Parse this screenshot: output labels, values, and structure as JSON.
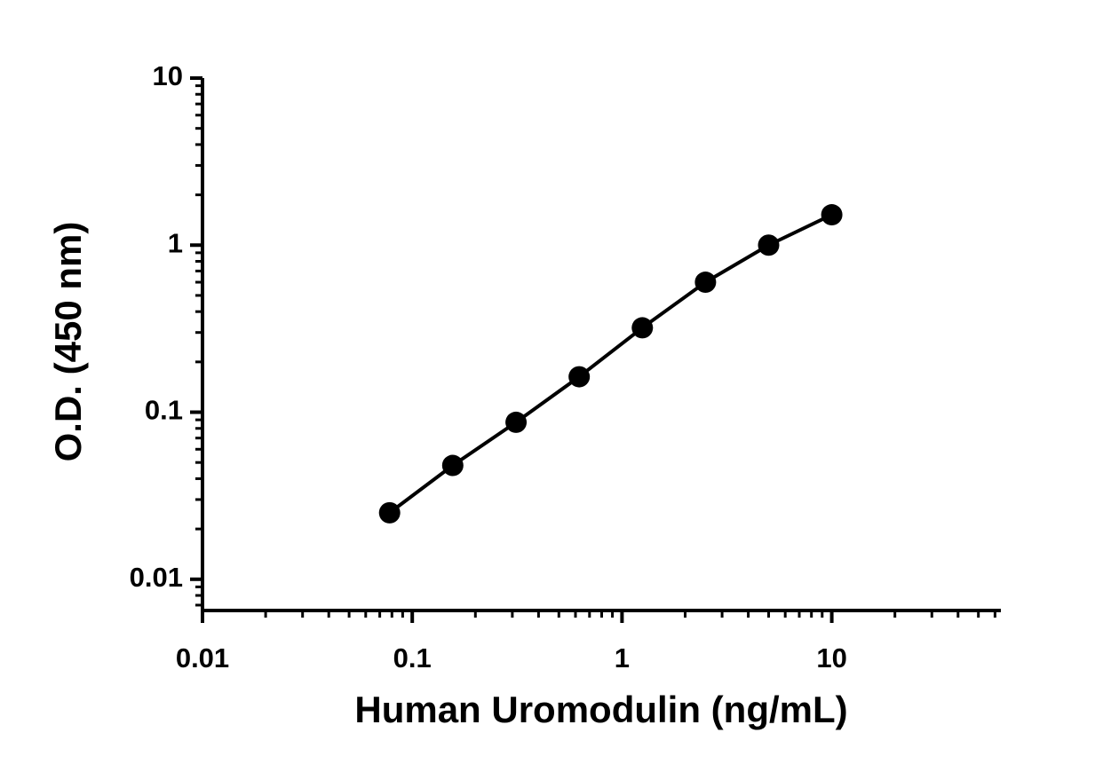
{
  "chart_data": {
    "type": "line",
    "x_label": "Human Uromodulin (ng/mL)",
    "y_label": "O.D. (450 nm)",
    "x_scale": "log",
    "y_scale": "log",
    "color": "#000000",
    "marker": "circle",
    "x": [
      0.078,
      0.156,
      0.3125,
      0.625,
      1.25,
      2.5,
      5,
      10
    ],
    "values": [
      0.025,
      0.048,
      0.087,
      0.163,
      0.32,
      0.6,
      1.0,
      1.52
    ],
    "xlim": [
      0.01,
      64
    ],
    "ylim": [
      0.0065,
      10
    ],
    "xticks": [
      0.01,
      0.1,
      1,
      10
    ],
    "yticks": [
      0.01,
      0.1,
      1,
      10
    ]
  }
}
